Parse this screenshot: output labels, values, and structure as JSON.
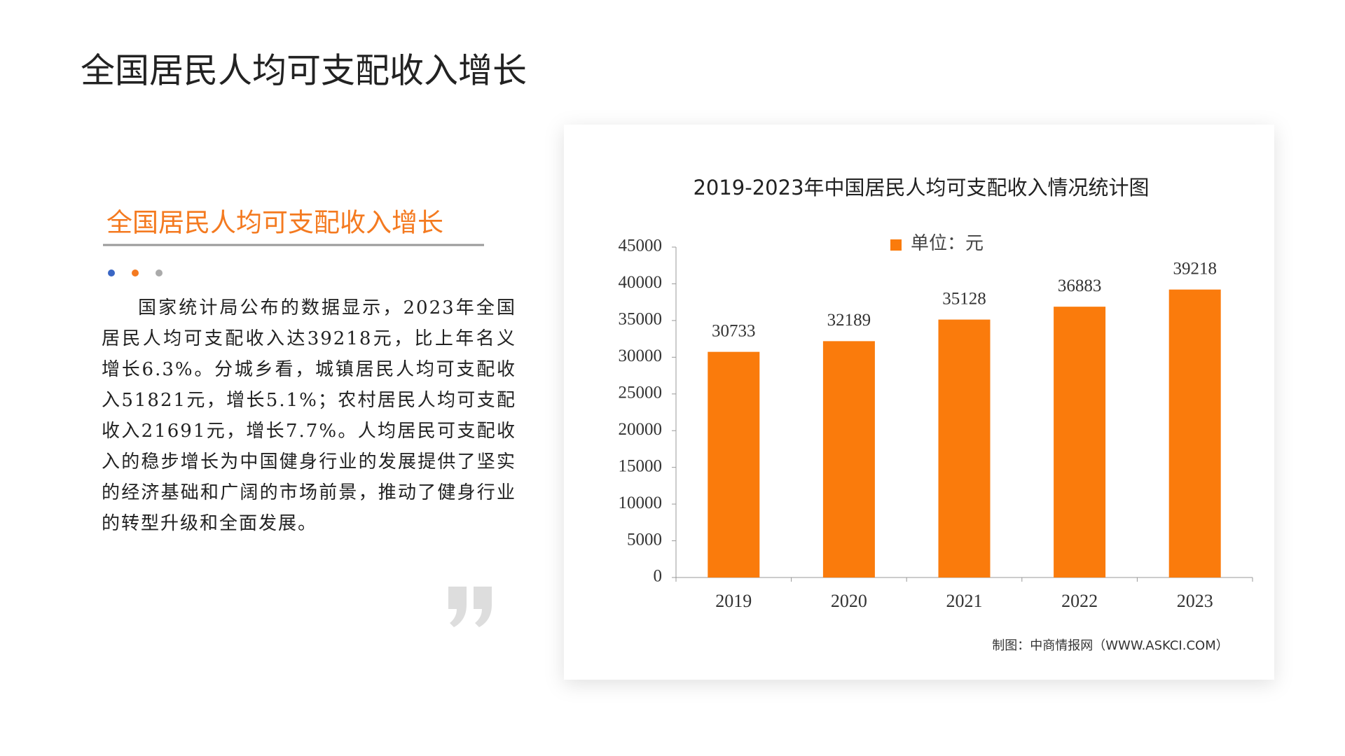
{
  "header": {
    "title": "全国居民人均可支配收入增长"
  },
  "section": {
    "title": "全国居民人均可支配收入增长",
    "paragraph": "国家统计局公布的数据显示，2023年全国居民人均可支配收入达39218元，比上年名义增长6.3%。分城乡看，城镇居民人均可支配收入51821元，增长5.1%；农村居民人均可支配收入21691元，增长7.7%。人均居民可支配收入的稳步增长为中国健身行业的发展提供了坚实的经济基础和广阔的市场前景，推动了健身行业的转型升级和全面发展。"
  },
  "chart_data": {
    "type": "bar",
    "title": "2019-2023年中国居民人均可支配收入情况统计图",
    "categories": [
      "2019",
      "2020",
      "2021",
      "2022",
      "2023"
    ],
    "series": [
      {
        "name": "单位：元",
        "color": "#fa7b0c",
        "values": [
          30733,
          32189,
          35128,
          36883,
          39218
        ]
      }
    ],
    "ylim": [
      0,
      45000
    ],
    "yticks": [
      0,
      5000,
      10000,
      15000,
      20000,
      25000,
      30000,
      35000,
      40000,
      45000
    ],
    "source": "制图：中商情报网（WWW.ASKCI.COM）"
  }
}
